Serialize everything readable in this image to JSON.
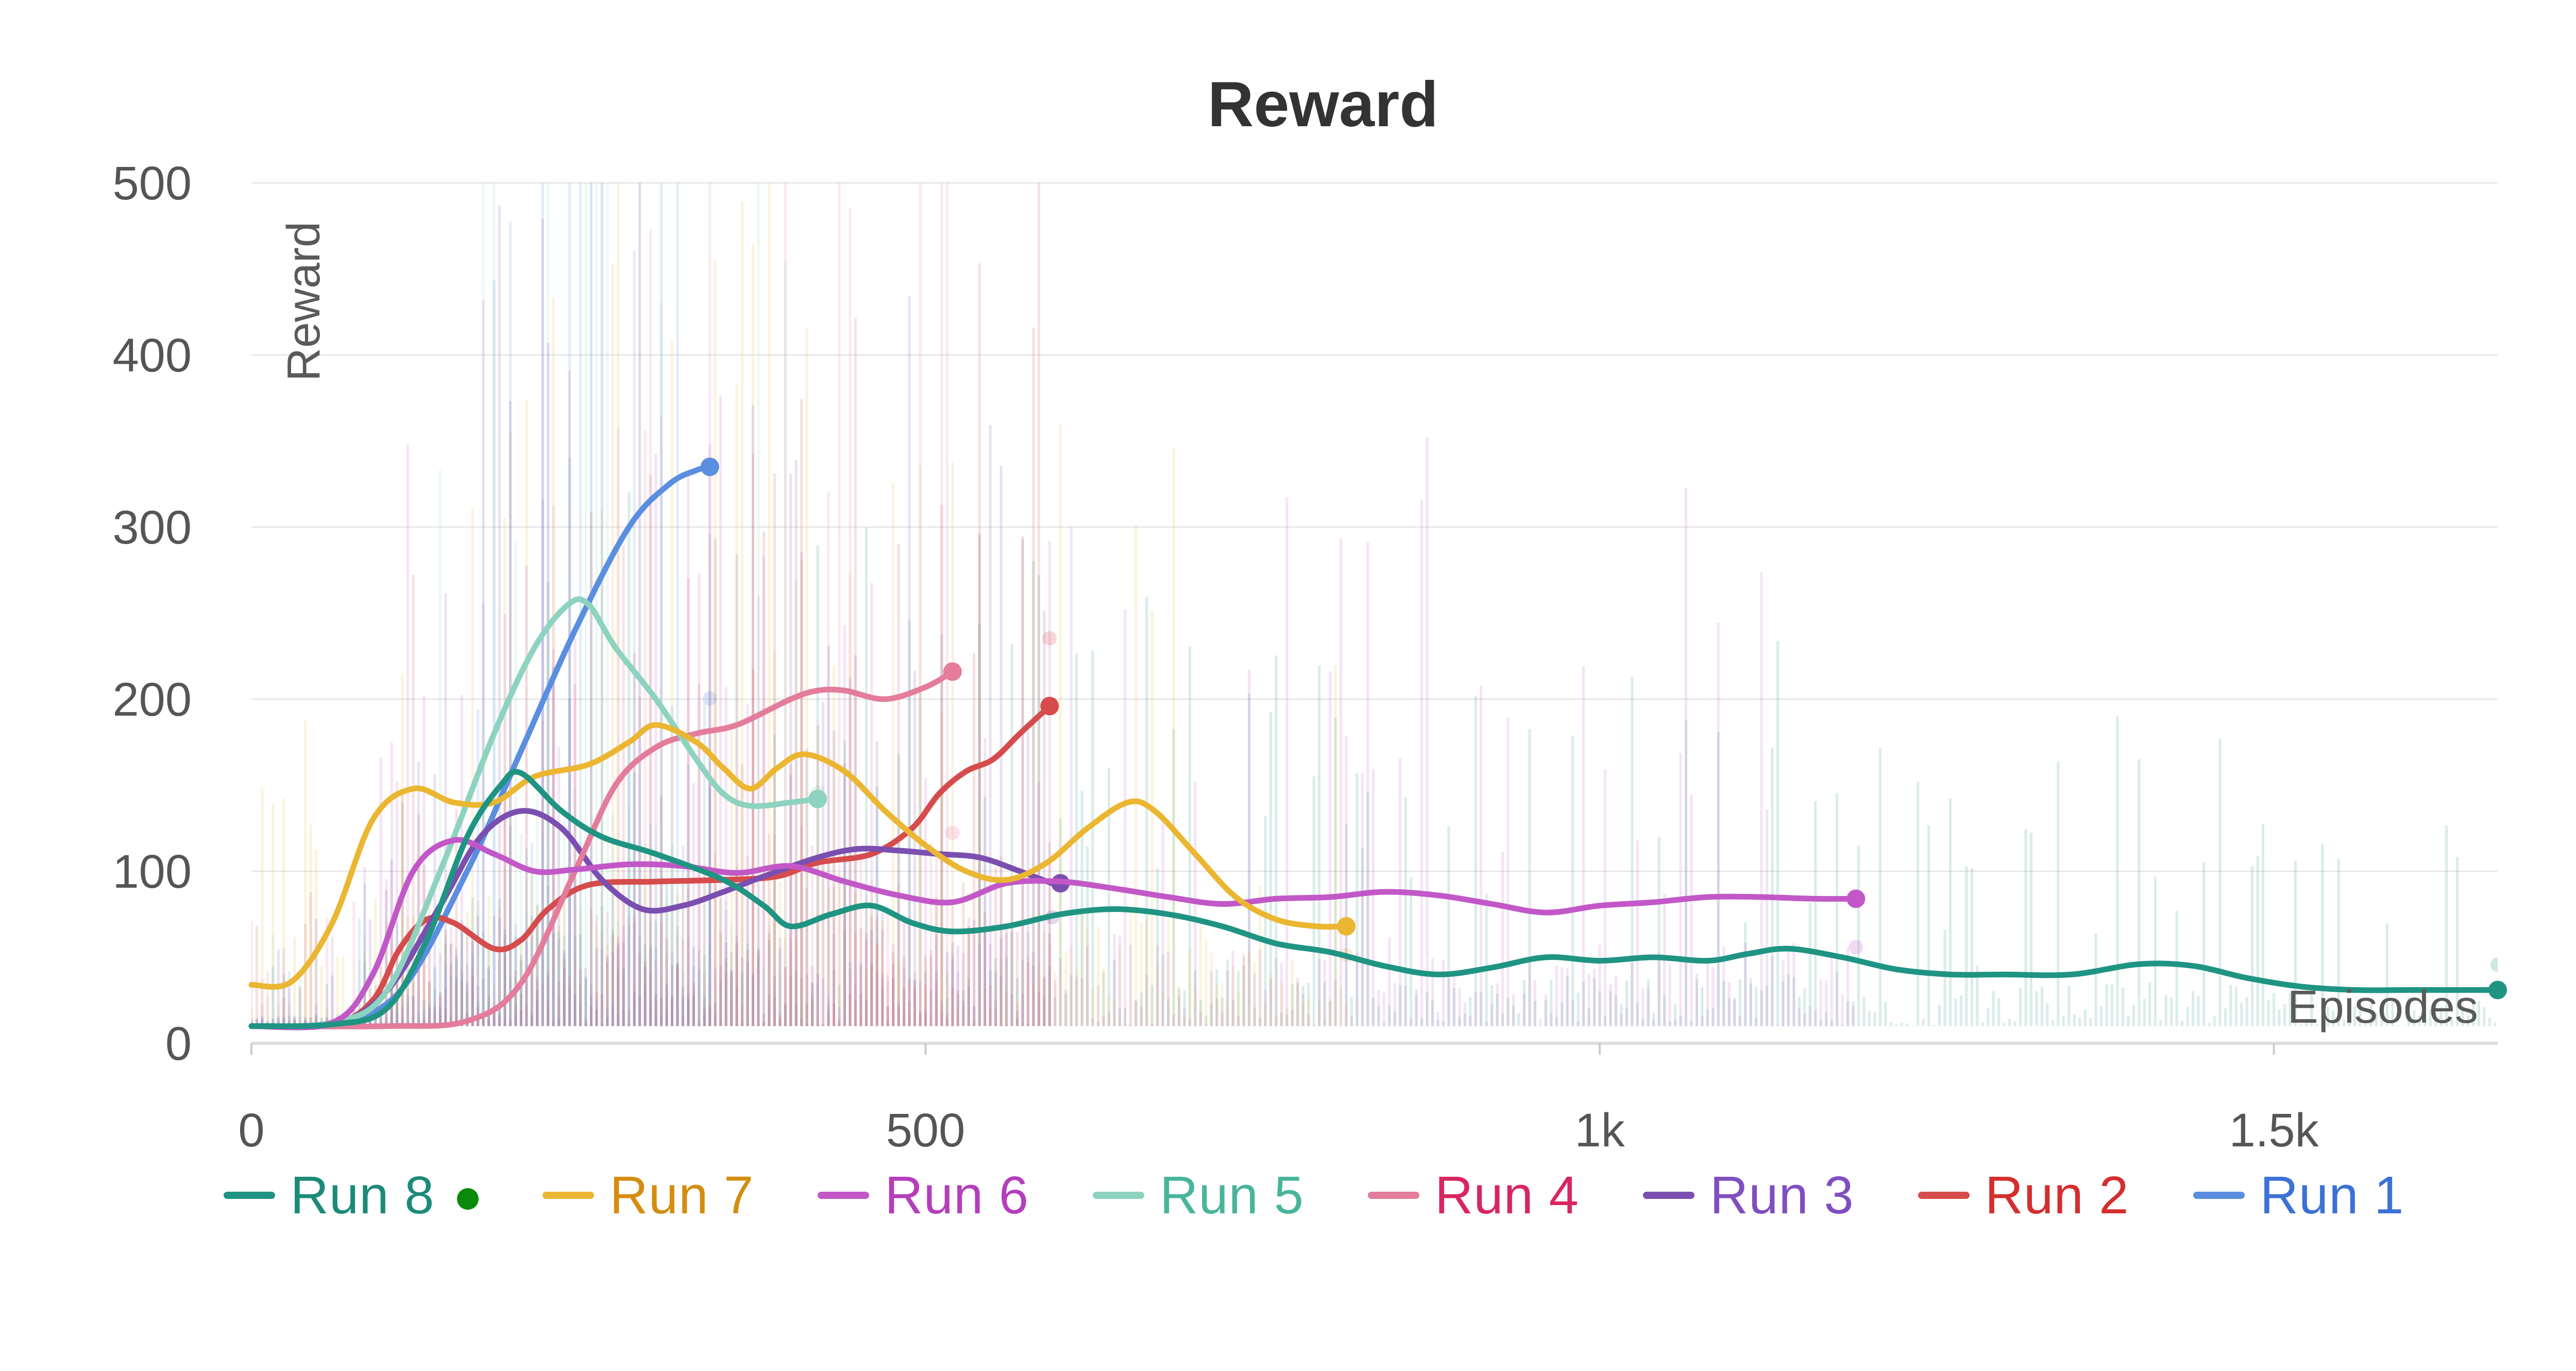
{
  "chart_data": {
    "type": "line",
    "title": "Reward",
    "xlabel": "Episodes",
    "ylabel": "Reward",
    "xlim": [
      0,
      1666
    ],
    "ylim": [
      0,
      500
    ],
    "x_ticks": [
      {
        "value": 0,
        "label": "0"
      },
      {
        "value": 500,
        "label": "500"
      },
      {
        "value": 1000,
        "label": "1k"
      },
      {
        "value": 1500,
        "label": "1.5k"
      }
    ],
    "y_ticks": [
      {
        "value": 0,
        "label": "0"
      },
      {
        "value": 100,
        "label": "100"
      },
      {
        "value": 200,
        "label": "200"
      },
      {
        "value": 300,
        "label": "300"
      },
      {
        "value": 400,
        "label": "400"
      },
      {
        "value": 500,
        "label": "500"
      }
    ],
    "grid": true,
    "legend_position": "bottom",
    "series": [
      {
        "name": "Run 8",
        "color": "#1f9483",
        "label_color": "#1b8a79",
        "highlighted": true,
        "points": [
          [
            0,
            10
          ],
          [
            60,
            11
          ],
          [
            100,
            20
          ],
          [
            130,
            60
          ],
          [
            160,
            120
          ],
          [
            185,
            150
          ],
          [
            200,
            157
          ],
          [
            230,
            135
          ],
          [
            260,
            120
          ],
          [
            300,
            110
          ],
          [
            350,
            95
          ],
          [
            380,
            80
          ],
          [
            400,
            68
          ],
          [
            430,
            75
          ],
          [
            460,
            80
          ],
          [
            490,
            70
          ],
          [
            520,
            65
          ],
          [
            560,
            68
          ],
          [
            600,
            75
          ],
          [
            640,
            78
          ],
          [
            680,
            75
          ],
          [
            720,
            68
          ],
          [
            760,
            58
          ],
          [
            800,
            53
          ],
          [
            840,
            45
          ],
          [
            880,
            40
          ],
          [
            920,
            44
          ],
          [
            960,
            50
          ],
          [
            1000,
            48
          ],
          [
            1040,
            50
          ],
          [
            1080,
            48
          ],
          [
            1110,
            52
          ],
          [
            1140,
            55
          ],
          [
            1180,
            50
          ],
          [
            1220,
            43
          ],
          [
            1260,
            40
          ],
          [
            1300,
            40
          ],
          [
            1350,
            40
          ],
          [
            1400,
            46
          ],
          [
            1440,
            45
          ],
          [
            1480,
            38
          ],
          [
            1520,
            33
          ],
          [
            1560,
            31
          ],
          [
            1600,
            31
          ],
          [
            1640,
            31
          ],
          [
            1666,
            31
          ]
        ]
      },
      {
        "name": "Run 7",
        "color": "#ebb631",
        "label_color": "#d48d10",
        "highlighted": false,
        "points": [
          [
            0,
            34
          ],
          [
            30,
            36
          ],
          [
            60,
            70
          ],
          [
            90,
            130
          ],
          [
            120,
            148
          ],
          [
            150,
            140
          ],
          [
            180,
            140
          ],
          [
            210,
            155
          ],
          [
            250,
            162
          ],
          [
            280,
            175
          ],
          [
            300,
            185
          ],
          [
            330,
            175
          ],
          [
            350,
            160
          ],
          [
            370,
            148
          ],
          [
            390,
            160
          ],
          [
            410,
            168
          ],
          [
            440,
            158
          ],
          [
            470,
            135
          ],
          [
            500,
            115
          ],
          [
            530,
            100
          ],
          [
            560,
            95
          ],
          [
            590,
            105
          ],
          [
            620,
            125
          ],
          [
            650,
            140
          ],
          [
            670,
            135
          ],
          [
            700,
            110
          ],
          [
            730,
            85
          ],
          [
            760,
            72
          ],
          [
            790,
            68
          ],
          [
            812,
            68
          ]
        ]
      },
      {
        "name": "Run 6",
        "color": "#c258c7",
        "label_color": "#b43ebb",
        "highlighted": false,
        "points": [
          [
            0,
            10
          ],
          [
            60,
            12
          ],
          [
            90,
            40
          ],
          [
            120,
            100
          ],
          [
            150,
            118
          ],
          [
            180,
            110
          ],
          [
            210,
            100
          ],
          [
            240,
            101
          ],
          [
            280,
            104
          ],
          [
            320,
            103
          ],
          [
            360,
            99
          ],
          [
            400,
            103
          ],
          [
            440,
            94
          ],
          [
            480,
            86
          ],
          [
            520,
            82
          ],
          [
            560,
            93
          ],
          [
            600,
            94
          ],
          [
            640,
            90
          ],
          [
            680,
            85
          ],
          [
            720,
            81
          ],
          [
            760,
            84
          ],
          [
            800,
            85
          ],
          [
            840,
            88
          ],
          [
            880,
            86
          ],
          [
            920,
            81
          ],
          [
            960,
            76
          ],
          [
            1000,
            80
          ],
          [
            1040,
            82
          ],
          [
            1080,
            85
          ],
          [
            1120,
            85
          ],
          [
            1160,
            84
          ],
          [
            1190,
            84
          ]
        ]
      },
      {
        "name": "Run 5",
        "color": "#8dd3bf",
        "label_color": "#48b59a",
        "highlighted": false,
        "points": [
          [
            0,
            10
          ],
          [
            60,
            12
          ],
          [
            100,
            30
          ],
          [
            140,
            100
          ],
          [
            180,
            180
          ],
          [
            210,
            230
          ],
          [
            235,
            255
          ],
          [
            250,
            255
          ],
          [
            270,
            230
          ],
          [
            300,
            200
          ],
          [
            330,
            165
          ],
          [
            350,
            145
          ],
          [
            370,
            138
          ],
          [
            400,
            140
          ],
          [
            420,
            142
          ]
        ]
      },
      {
        "name": "Run 4",
        "color": "#e47c9c",
        "label_color": "#d8265f",
        "highlighted": false,
        "points": [
          [
            0,
            10
          ],
          [
            100,
            10
          ],
          [
            160,
            13
          ],
          [
            200,
            35
          ],
          [
            240,
            100
          ],
          [
            270,
            150
          ],
          [
            300,
            172
          ],
          [
            330,
            180
          ],
          [
            360,
            185
          ],
          [
            400,
            200
          ],
          [
            420,
            205
          ],
          [
            440,
            205
          ],
          [
            470,
            200
          ],
          [
            500,
            207
          ],
          [
            520,
            216
          ]
        ]
      },
      {
        "name": "Run 3",
        "color": "#7a4fb0",
        "label_color": "#7f4fbf",
        "highlighted": false,
        "points": [
          [
            0,
            10
          ],
          [
            60,
            11
          ],
          [
            100,
            30
          ],
          [
            140,
            80
          ],
          [
            170,
            120
          ],
          [
            200,
            135
          ],
          [
            230,
            125
          ],
          [
            260,
            95
          ],
          [
            290,
            78
          ],
          [
            320,
            80
          ],
          [
            350,
            88
          ],
          [
            380,
            97
          ],
          [
            420,
            108
          ],
          [
            450,
            113
          ],
          [
            480,
            112
          ],
          [
            510,
            110
          ],
          [
            540,
            108
          ],
          [
            570,
            100
          ],
          [
            600,
            93
          ],
          [
            594,
            93
          ]
        ]
      },
      {
        "name": "Run 2",
        "color": "#d64c4c",
        "label_color": "#d42e2e",
        "highlighted": false,
        "points": [
          [
            0,
            10
          ],
          [
            60,
            11
          ],
          [
            90,
            25
          ],
          [
            110,
            55
          ],
          [
            130,
            72
          ],
          [
            150,
            70
          ],
          [
            180,
            55
          ],
          [
            200,
            60
          ],
          [
            220,
            78
          ],
          [
            250,
            92
          ],
          [
            300,
            94
          ],
          [
            350,
            95
          ],
          [
            390,
            97
          ],
          [
            420,
            105
          ],
          [
            460,
            110
          ],
          [
            490,
            125
          ],
          [
            510,
            145
          ],
          [
            530,
            158
          ],
          [
            550,
            165
          ],
          [
            570,
            180
          ],
          [
            592,
            196
          ]
        ]
      },
      {
        "name": "Run 1",
        "color": "#5a8ee0",
        "label_color": "#3c71d6",
        "highlighted": false,
        "points": [
          [
            0,
            10
          ],
          [
            60,
            12
          ],
          [
            110,
            30
          ],
          [
            160,
            100
          ],
          [
            200,
            170
          ],
          [
            240,
            240
          ],
          [
            280,
            300
          ],
          [
            310,
            325
          ],
          [
            330,
            333
          ],
          [
            340,
            335
          ]
        ]
      }
    ]
  }
}
